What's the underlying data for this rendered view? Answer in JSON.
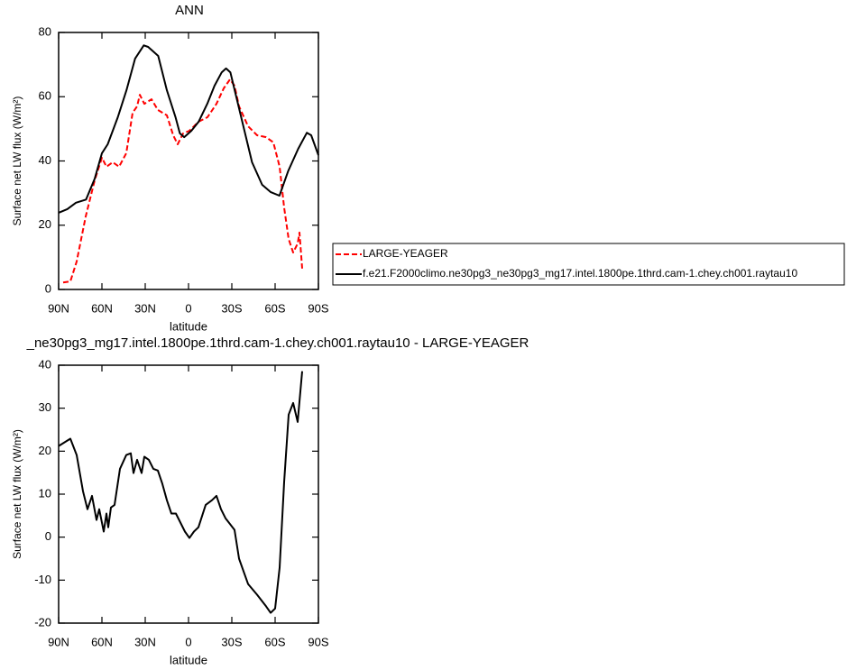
{
  "chart_data": [
    {
      "type": "line",
      "title": "ANN",
      "x_label": "latitude",
      "y_label": "Surface net LW flux (W/m²)",
      "xlim": [
        90,
        -90
      ],
      "xticks": [
        {
          "value": 90,
          "label": "90N"
        },
        {
          "value": 60,
          "label": "60N"
        },
        {
          "value": 30,
          "label": "30N"
        },
        0,
        {
          "value": -30,
          "label": "30S"
        },
        {
          "value": -60,
          "label": "60S"
        },
        {
          "value": -90,
          "label": "90S"
        }
      ],
      "ylim": [
        0,
        80
      ],
      "yticks": [
        0,
        20,
        40,
        60,
        80
      ],
      "legend": "right",
      "series": [
        {
          "name": "LARGE-YEAGER",
          "color": "#ff0000",
          "line_style": "dashed",
          "x": [
            86.9,
            81.9,
            77.5,
            71.25,
            65,
            60,
            56.9,
            52.5,
            48.1,
            43.1,
            38.75,
            35.6,
            33.75,
            30.6,
            25.6,
            21.25,
            15,
            10.6,
            7.5,
            3.75,
            -0.6,
            -6.9,
            -13.1,
            -19.4,
            -24.4,
            -28.75,
            -31.9,
            -35,
            -41.25,
            -47.5,
            -53.75,
            -58.75,
            -63.1,
            -66.25,
            -69.4,
            -72.5,
            -75.6,
            -76.9,
            -78.75
          ],
          "values": [
            2.2,
            2.5,
            8.7,
            22.7,
            34,
            41,
            38.2,
            39.6,
            38.2,
            42.4,
            55,
            57,
            60.6,
            57.8,
            59.2,
            55.9,
            54.2,
            48,
            45.2,
            48.6,
            49.4,
            52.2,
            53.6,
            57.8,
            62.6,
            65.4,
            63.4,
            57,
            50.8,
            48,
            47.4,
            45.8,
            38.2,
            25.5,
            15.7,
            11.5,
            14.3,
            17.7,
            6.5
          ]
        },
        {
          "name": "f.e21.F2000climo.ne30pg3_ne30pg3_mg17.intel.1800pe.1thrd.cam-1.chey.ch001.raytau10",
          "color": "#000000",
          "line_style": "solid",
          "x": [
            90,
            84,
            78,
            71,
            65,
            60,
            56,
            49,
            43,
            37,
            31,
            28,
            21,
            15,
            9,
            6,
            3,
            -2,
            -7,
            -13,
            -18,
            -23,
            -26,
            -29,
            -32,
            -38,
            -44,
            -51,
            -57,
            -63,
            -69,
            -76,
            -82,
            -85,
            -90
          ],
          "values": [
            23.9,
            25,
            27,
            28,
            34.5,
            42.4,
            45.2,
            53.6,
            62,
            71.9,
            76,
            75.5,
            72.7,
            62,
            53.6,
            48.6,
            47.4,
            49.4,
            52.2,
            57.8,
            63.4,
            67.6,
            68.8,
            67.6,
            62,
            50.8,
            39.6,
            32.6,
            30.3,
            29.2,
            36.8,
            43.8,
            48.8,
            48,
            41.8
          ]
        }
      ]
    },
    {
      "type": "line",
      "title": "_ne30pg3_mg17.intel.1800pe.1thrd.cam-1.chey.ch001.raytau10 - LARGE-YEAGER",
      "x_label": "latitude",
      "y_label": "Surface net LW flux (W/m²)",
      "xlim": [
        90,
        -90
      ],
      "xticks": [
        {
          "value": 90,
          "label": "90N"
        },
        {
          "value": 60,
          "label": "60N"
        },
        {
          "value": 30,
          "label": "30N"
        },
        0,
        {
          "value": -30,
          "label": "30S"
        },
        {
          "value": -60,
          "label": "60S"
        },
        {
          "value": -90,
          "label": "90S"
        }
      ],
      "ylim": [
        -20,
        40
      ],
      "yticks": [
        -20,
        -10,
        0,
        10,
        20,
        30,
        40
      ],
      "color": "#000000",
      "x": [
        90,
        81.9,
        77.5,
        73.1,
        70,
        66.9,
        63.75,
        61.9,
        58.75,
        56.9,
        55.6,
        53.75,
        51.25,
        47.5,
        43.1,
        40,
        38.1,
        35.6,
        32.5,
        30.6,
        27.5,
        24.4,
        21.25,
        18.1,
        15,
        11.9,
        8.75,
        5.6,
        2.5,
        -0.6,
        -3.75,
        -6.9,
        -11.9,
        -16.25,
        -19.4,
        -22.5,
        -25.6,
        -31.9,
        -35,
        -41.25,
        -47.5,
        -53.75,
        -56.9,
        -60,
        -63.1,
        -66.25,
        -69.4,
        -72.5,
        -75.6,
        -78.75
      ],
      "values": [
        21.2,
        22.9,
        19.1,
        10.7,
        6.5,
        9.6,
        4,
        6.5,
        1.3,
        5.5,
        2.3,
        6.9,
        7.5,
        15.9,
        19.1,
        19.5,
        14.9,
        18,
        14.9,
        18.7,
        18,
        15.9,
        15.5,
        12.4,
        8.6,
        5.5,
        5.5,
        3.4,
        1.3,
        -0.2,
        1.3,
        2.3,
        7.5,
        8.6,
        9.6,
        6.5,
        4.4,
        1.7,
        -5,
        -10.9,
        -13.4,
        -16.1,
        -17.6,
        -16.6,
        -7.1,
        12.8,
        28.5,
        31.2,
        26.8,
        38.6
      ]
    }
  ]
}
